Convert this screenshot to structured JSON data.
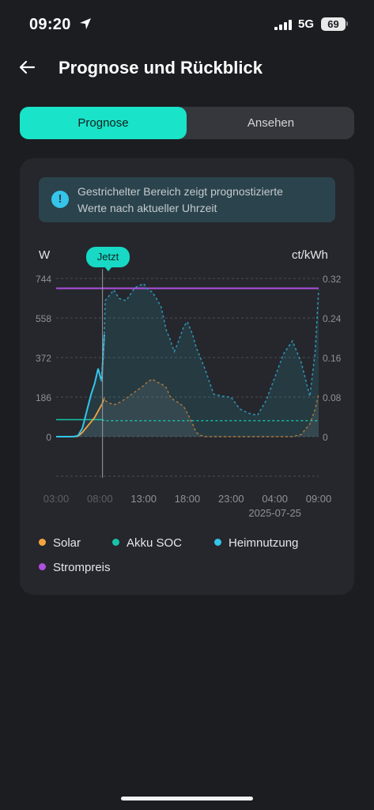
{
  "status_bar": {
    "time": "09:20",
    "network": "5G",
    "battery": "69"
  },
  "header": {
    "title": "Prognose und Rückblick"
  },
  "tabs": [
    {
      "label": "Prognose",
      "active": true
    },
    {
      "label": "Ansehen",
      "active": false
    }
  ],
  "info": {
    "text_line1": "Gestrichelter Bereich zeigt prognostizierte",
    "text_line2": "Werte nach aktueller Uhrzeit"
  },
  "colors": {
    "accent": "#19e3c8",
    "solar": "#f5a440",
    "soc": "#17c3a8",
    "home": "#35c5ea",
    "price": "#b04fe0"
  },
  "chart_data": {
    "type": "line",
    "now_label": "Jetzt",
    "now_index": 6,
    "left_axis": {
      "unit": "W",
      "ticks": [
        "744",
        "558",
        "372",
        "186",
        "0"
      ],
      "range": [
        0,
        744
      ]
    },
    "right_axis": {
      "unit": "ct/kWh",
      "ticks": [
        "0.32",
        "0.24",
        "0.16",
        "0.08",
        "0"
      ],
      "range": [
        0,
        0.32
      ]
    },
    "x_ticks": [
      "03:00",
      "08:00",
      "13:00",
      "18:00",
      "23:00",
      "04:00",
      "09:00"
    ],
    "x_date_label": "2025-07-25",
    "x_hours": [
      3,
      4,
      5,
      5.5,
      6,
      7,
      7.4,
      7.8,
      8.2,
      8.5,
      8.6,
      9,
      9.6,
      10.2,
      11,
      12,
      13,
      13.5,
      14,
      14.6,
      15,
      15.6,
      16,
      16.5,
      17,
      17.6,
      18,
      18.6,
      19,
      19.6,
      20,
      21,
      22,
      23,
      24,
      25,
      26,
      27,
      28,
      29,
      30,
      31,
      32,
      32.6,
      33
    ],
    "series": [
      {
        "name": "Heimnutzung",
        "axis": "left",
        "values": [
          0,
          0,
          0,
          5,
          40,
          200,
          250,
          320,
          260,
          480,
          640,
          660,
          690,
          650,
          640,
          700,
          720,
          690,
          680,
          640,
          610,
          500,
          460,
          400,
          450,
          520,
          540,
          480,
          420,
          360,
          320,
          200,
          190,
          185,
          130,
          110,
          100,
          170,
          280,
          390,
          450,
          350,
          190,
          400,
          690
        ]
      },
      {
        "name": "Solar",
        "axis": "left",
        "values": [
          0,
          0,
          0,
          2,
          20,
          70,
          90,
          120,
          150,
          180,
          170,
          160,
          150,
          160,
          180,
          210,
          240,
          260,
          270,
          255,
          250,
          230,
          190,
          170,
          160,
          140,
          110,
          60,
          20,
          5,
          0,
          0,
          0,
          0,
          0,
          0,
          0,
          0,
          0,
          0,
          0,
          10,
          60,
          130,
          200
        ]
      },
      {
        "name": "Akku SOC",
        "axis": "left",
        "values": [
          80,
          80,
          80,
          80,
          80,
          80,
          80,
          80,
          80,
          76,
          75,
          75,
          75,
          75,
          75,
          75,
          75,
          75,
          75,
          75,
          75,
          75,
          75,
          75,
          75,
          75,
          75,
          75,
          75,
          75,
          75,
          75,
          75,
          75,
          75,
          75,
          75,
          75,
          75,
          75,
          75,
          75,
          75,
          75,
          75
        ]
      },
      {
        "name": "Strompreis",
        "axis": "right",
        "values": [
          0.3,
          0.3,
          0.3,
          0.3,
          0.3,
          0.3,
          0.3,
          0.3,
          0.3,
          0.3,
          0.3,
          0.3,
          0.3,
          0.3,
          0.3,
          0.3,
          0.3,
          0.3,
          0.3,
          0.3,
          0.3,
          0.3,
          0.3,
          0.3,
          0.3,
          0.3,
          0.3,
          0.3,
          0.3,
          0.3,
          0.3,
          0.3,
          0.3,
          0.3,
          0.3,
          0.3,
          0.3,
          0.3,
          0.3,
          0.3,
          0.3,
          0.3,
          0.3,
          0.3,
          0.3
        ]
      }
    ],
    "grid": true,
    "legend": [
      "Solar",
      "Akku SOC",
      "Heimnutzung",
      "Strompreis"
    ],
    "legend_placement": "bottom"
  }
}
